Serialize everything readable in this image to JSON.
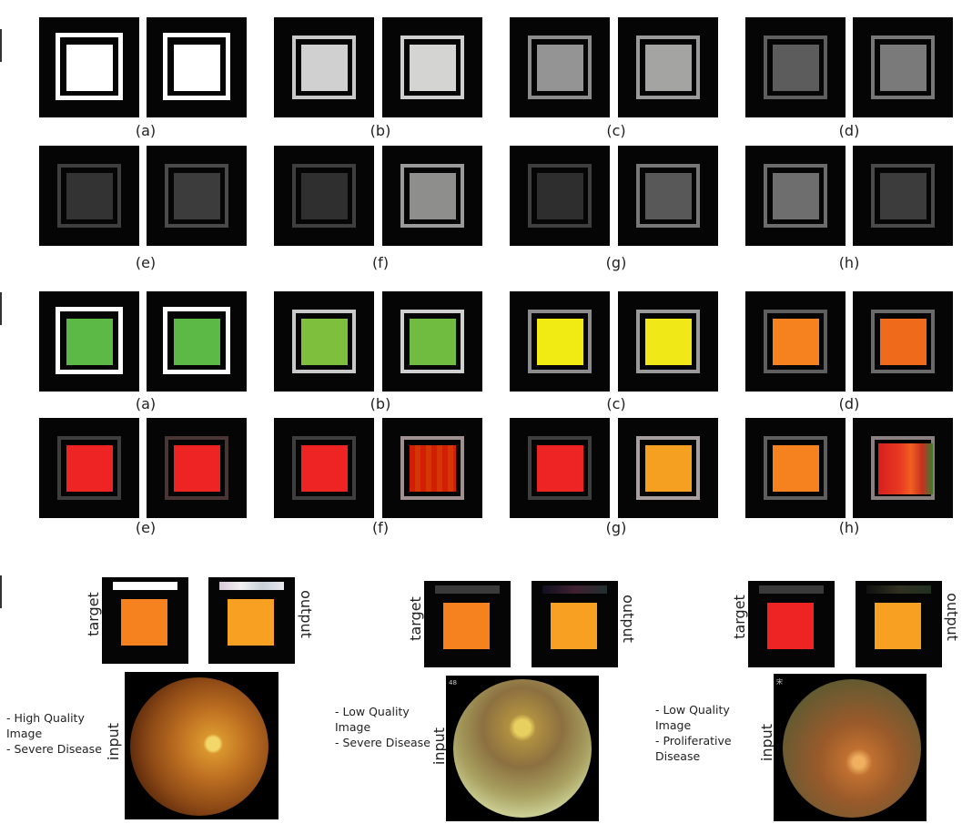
{
  "panels_gray": {
    "captions": [
      "(a)",
      "(b)",
      "(c)",
      "(d)",
      "(e)",
      "(f)",
      "(g)",
      "(h)"
    ]
  },
  "panels_color": {
    "captions": [
      "(a)",
      "(b)",
      "(c)",
      "(d)",
      "(e)",
      "(f)",
      "(g)",
      "(h)"
    ]
  },
  "bottom": {
    "target_label": "target",
    "output_label": "output",
    "input_label": "input",
    "cases": [
      {
        "note": "- High Quality\nImage\n- Severe Disease"
      },
      {
        "note": "- Low Quality\nImage\n- Severe Disease",
        "corner_tag": "48"
      },
      {
        "note": "- Low Quality\nImage\n- Proliferative\nDisease",
        "corner_tag": "宋"
      }
    ]
  }
}
